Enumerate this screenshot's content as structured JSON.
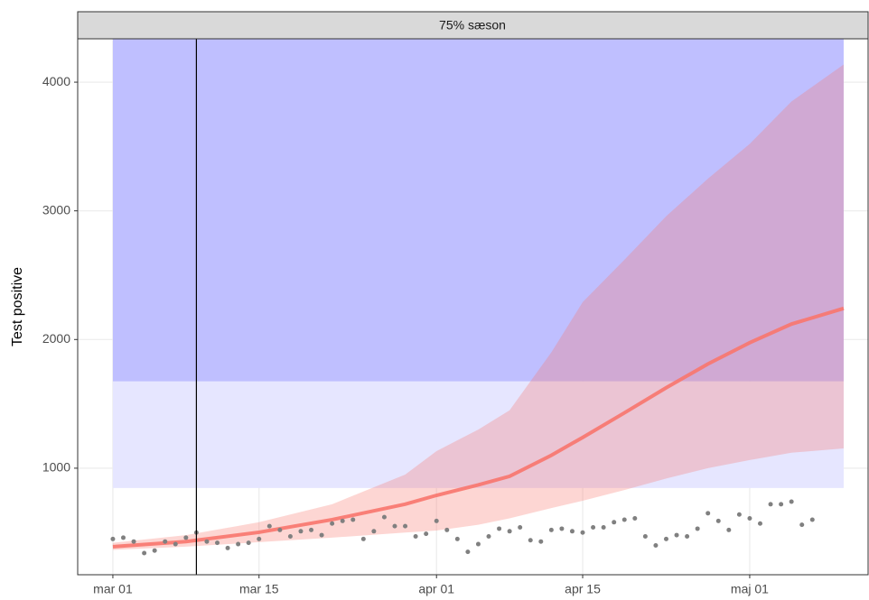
{
  "chart_data": {
    "type": "forecast",
    "strip": "75% sæson",
    "ylabel": "Test positive",
    "xlim": [
      -3.37,
      72.34
    ],
    "ylim": [
      172,
      4337
    ],
    "xticks": [
      {
        "value": 0,
        "label": "mar 01"
      },
      {
        "value": 14,
        "label": "mar 15"
      },
      {
        "value": 31,
        "label": "apr 01"
      },
      {
        "value": 45,
        "label": "apr 15"
      },
      {
        "value": 61,
        "label": "maj 01"
      }
    ],
    "yticks": [
      1000,
      2000,
      3000,
      4000
    ],
    "grid": true,
    "bands": [
      {
        "xmin": 0,
        "xmax": 70,
        "ymin": 1674,
        "ymax": 4337,
        "color": "#bfbfff"
      },
      {
        "xmin": 0,
        "xmax": 70,
        "ymin": 846,
        "ymax": 1674,
        "color": "#e6e6ff"
      }
    ],
    "vline": 8,
    "forecast": {
      "color": "#f8766d",
      "x": [
        0,
        7,
        14,
        21,
        28,
        31,
        35,
        38,
        42,
        45,
        49,
        53,
        57,
        61,
        65,
        70
      ],
      "values": [
        390,
        430,
        502,
        600,
        720,
        789,
        870,
        937,
        1100,
        1239,
        1430,
        1625,
        1810,
        1975,
        2120,
        2242
      ],
      "lower": [
        365,
        390,
        425,
        460,
        500,
        516,
        560,
        610,
        690,
        747,
        830,
        920,
        1000,
        1063,
        1120,
        1154
      ],
      "upper": [
        420,
        480,
        580,
        720,
        950,
        1133,
        1300,
        1450,
        1900,
        2290,
        2620,
        2958,
        3250,
        3520,
        3850,
        4137
      ]
    },
    "observed": {
      "color": "#808080",
      "x": [
        0,
        1,
        2,
        3,
        4,
        5,
        6,
        7,
        8,
        9,
        10,
        11,
        12,
        13,
        14,
        15,
        16,
        17,
        18,
        19,
        20,
        21,
        22,
        23,
        24,
        25,
        26,
        27,
        28,
        29,
        30,
        31,
        32,
        33,
        34,
        35,
        36,
        37,
        38,
        39,
        40,
        41,
        42,
        43,
        44,
        45,
        46,
        47,
        48,
        49,
        50,
        51,
        52,
        53,
        54,
        55,
        56,
        57,
        58,
        59,
        60,
        61,
        62,
        63,
        64,
        65,
        66,
        67
      ],
      "values": [
        450,
        460,
        430,
        340,
        360,
        430,
        410,
        460,
        500,
        430,
        420,
        380,
        410,
        420,
        450,
        550,
        520,
        470,
        510,
        520,
        480,
        570,
        590,
        600,
        450,
        510,
        620,
        550,
        550,
        470,
        490,
        590,
        520,
        450,
        350,
        410,
        470,
        530,
        510,
        540,
        440,
        430,
        520,
        530,
        510,
        500,
        540,
        540,
        580,
        600,
        610,
        470,
        400,
        450,
        480,
        470,
        530,
        650,
        590,
        520,
        640,
        610,
        570,
        720,
        720,
        740,
        560,
        600
      ]
    }
  }
}
